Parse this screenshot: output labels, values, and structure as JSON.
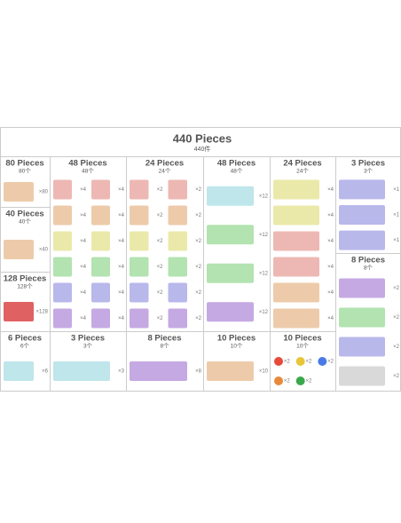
{
  "header": {
    "title": "440 Pieces",
    "subtitle": "440件"
  },
  "sections": [
    {
      "title": "80 Pieces",
      "subtitle": "80个",
      "items": [
        "×80"
      ]
    },
    {
      "title": "40 Pieces",
      "subtitle": "40个",
      "items": [
        "×40"
      ]
    },
    {
      "title": "128 Pieces",
      "subtitle": "128个",
      "items": [
        "×128"
      ]
    },
    {
      "title": "48 Pieces",
      "subtitle": "48个",
      "items": [
        "×4",
        "×4",
        "×4",
        "×4",
        "×4",
        "×4",
        "×4",
        "×4",
        "×4",
        "×4",
        "×4",
        "×4"
      ]
    },
    {
      "title": "24 Pieces",
      "subtitle": "24个",
      "items": [
        "×2",
        "×2",
        "×2",
        "×2",
        "×2",
        "×2",
        "×2",
        "×2",
        "×2",
        "×2",
        "×2",
        "×2"
      ]
    },
    {
      "title": "48 Pieces",
      "subtitle": "48个",
      "items": [
        "×12",
        "×12",
        "×12",
        "×12"
      ]
    },
    {
      "title": "24 Pieces",
      "subtitle": "24个",
      "items": [
        "×4",
        "×4",
        "×4",
        "×4",
        "×4",
        "×4"
      ]
    },
    {
      "title": "3 Pieces",
      "subtitle": "3个",
      "items": [
        "×1",
        "×1",
        "×1"
      ]
    },
    {
      "title": "8 Pieces",
      "subtitle": "8个",
      "items": [
        "×2",
        "×2",
        "×2",
        "×2"
      ]
    },
    {
      "title": "6 Pieces",
      "subtitle": "6个",
      "items": [
        "×6"
      ]
    },
    {
      "title": "3 Pieces",
      "subtitle": "3个",
      "items": [
        "×3"
      ]
    },
    {
      "title": "8 Pieces",
      "subtitle": "8个",
      "items": [
        "×8"
      ]
    },
    {
      "title": "10 Pieces",
      "subtitle": "10个",
      "items": [
        "×10"
      ]
    },
    {
      "title": "10 Pieces",
      "subtitle": "10个",
      "items": [
        "×2",
        "×2",
        "×2",
        "×2",
        "×2"
      ]
    }
  ]
}
